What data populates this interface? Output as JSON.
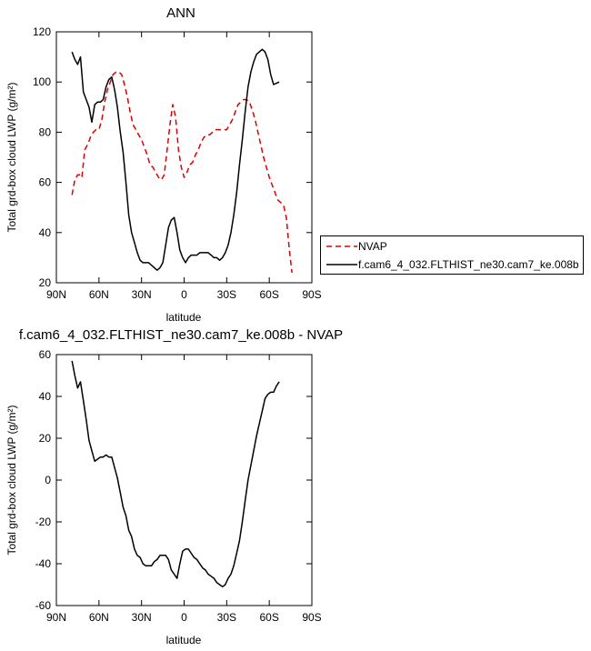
{
  "chart_data": [
    {
      "type": "line",
      "title": "ANN",
      "xlabel": "latitude",
      "ylabel": "Total grd-box cloud LWP (g/m²)",
      "xlim": [
        90,
        -90
      ],
      "ylim": [
        20,
        120
      ],
      "xticks": [
        {
          "value": 90,
          "label": "90N"
        },
        {
          "value": 60,
          "label": "60N"
        },
        {
          "value": 30,
          "label": "30N"
        },
        {
          "value": 0,
          "label": "0"
        },
        {
          "value": -30,
          "label": "30S"
        },
        {
          "value": -60,
          "label": "60S"
        },
        {
          "value": -90,
          "label": "90S"
        }
      ],
      "yticks": [
        20,
        40,
        60,
        80,
        100,
        120
      ],
      "grid": false,
      "legend": "right",
      "series": [
        {
          "name": "NVAP",
          "color": "#dd0000",
          "dash": "dashed",
          "points": [
            [
              79,
              55
            ],
            [
              77,
              61
            ],
            [
              75,
              63
            ],
            [
              73,
              63
            ],
            [
              72,
              62
            ],
            [
              70,
              73
            ],
            [
              68,
              75
            ],
            [
              66,
              78
            ],
            [
              64,
              80
            ],
            [
              62,
              81
            ],
            [
              60,
              81
            ],
            [
              58,
              85
            ],
            [
              56,
              92
            ],
            [
              54,
              97
            ],
            [
              52,
              100
            ],
            [
              50,
              103
            ],
            [
              48,
              104
            ],
            [
              46,
              104
            ],
            [
              44,
              103
            ],
            [
              42,
              99
            ],
            [
              40,
              94
            ],
            [
              38,
              88
            ],
            [
              36,
              83
            ],
            [
              34,
              81
            ],
            [
              32,
              79
            ],
            [
              30,
              77
            ],
            [
              28,
              74
            ],
            [
              26,
              71
            ],
            [
              24,
              67
            ],
            [
              22,
              66
            ],
            [
              20,
              64
            ],
            [
              18,
              62
            ],
            [
              16,
              61
            ],
            [
              14,
              63
            ],
            [
              12,
              73
            ],
            [
              10,
              83
            ],
            [
              8,
              91
            ],
            [
              6,
              86
            ],
            [
              4,
              73
            ],
            [
              2,
              66
            ],
            [
              0,
              62
            ],
            [
              -2,
              64
            ],
            [
              -4,
              67
            ],
            [
              -6,
              68
            ],
            [
              -8,
              71
            ],
            [
              -10,
              73
            ],
            [
              -12,
              76
            ],
            [
              -14,
              78
            ],
            [
              -16,
              79
            ],
            [
              -18,
              79
            ],
            [
              -20,
              80
            ],
            [
              -22,
              81
            ],
            [
              -24,
              81
            ],
            [
              -26,
              81
            ],
            [
              -28,
              81
            ],
            [
              -30,
              81
            ],
            [
              -32,
              83
            ],
            [
              -34,
              85
            ],
            [
              -36,
              88
            ],
            [
              -38,
              91
            ],
            [
              -40,
              92
            ],
            [
              -42,
              93
            ],
            [
              -44,
              93
            ],
            [
              -46,
              92
            ],
            [
              -48,
              89
            ],
            [
              -50,
              85
            ],
            [
              -52,
              80
            ],
            [
              -54,
              75
            ],
            [
              -56,
              70
            ],
            [
              -58,
              66
            ],
            [
              -60,
              62
            ],
            [
              -62,
              59
            ],
            [
              -64,
              56
            ],
            [
              -66,
              53
            ],
            [
              -68,
              52
            ],
            [
              -70,
              51
            ],
            [
              -72,
              46
            ],
            [
              -74,
              34
            ],
            [
              -76,
              24
            ]
          ]
        },
        {
          "name": "f.cam6_4_032.FLTHIST_ne30.cam7_ke.008b",
          "color": "#000000",
          "dash": "solid",
          "points": [
            [
              79,
              112
            ],
            [
              77,
              109
            ],
            [
              75,
              107
            ],
            [
              73,
              110
            ],
            [
              71,
              96
            ],
            [
              69,
              93
            ],
            [
              67,
              90
            ],
            [
              65,
              84
            ],
            [
              63,
              91
            ],
            [
              61,
              92
            ],
            [
              59,
              92
            ],
            [
              57,
              93
            ],
            [
              55,
              98
            ],
            [
              53,
              101
            ],
            [
              51,
              102
            ],
            [
              49,
              97
            ],
            [
              47,
              90
            ],
            [
              45,
              80
            ],
            [
              43,
              72
            ],
            [
              41,
              60
            ],
            [
              39,
              47
            ],
            [
              37,
              40
            ],
            [
              35,
              36
            ],
            [
              33,
              32
            ],
            [
              31,
              29
            ],
            [
              29,
              28
            ],
            [
              27,
              28
            ],
            [
              25,
              28
            ],
            [
              23,
              27
            ],
            [
              21,
              26
            ],
            [
              19,
              25
            ],
            [
              17,
              26
            ],
            [
              15,
              28
            ],
            [
              13,
              35
            ],
            [
              11,
              42
            ],
            [
              9,
              45
            ],
            [
              7,
              46
            ],
            [
              5,
              40
            ],
            [
              3,
              33
            ],
            [
              1,
              30
            ],
            [
              -1,
              28
            ],
            [
              -3,
              30
            ],
            [
              -5,
              31
            ],
            [
              -7,
              31
            ],
            [
              -9,
              31
            ],
            [
              -11,
              32
            ],
            [
              -13,
              32
            ],
            [
              -15,
              32
            ],
            [
              -17,
              32
            ],
            [
              -19,
              31
            ],
            [
              -21,
              30
            ],
            [
              -23,
              30
            ],
            [
              -25,
              29
            ],
            [
              -27,
              30
            ],
            [
              -29,
              32
            ],
            [
              -31,
              35
            ],
            [
              -33,
              40
            ],
            [
              -35,
              47
            ],
            [
              -37,
              56
            ],
            [
              -39,
              67
            ],
            [
              -41,
              77
            ],
            [
              -43,
              88
            ],
            [
              -45,
              98
            ],
            [
              -47,
              104
            ],
            [
              -49,
              108
            ],
            [
              -51,
              111
            ],
            [
              -53,
              112
            ],
            [
              -55,
              113
            ],
            [
              -57,
              112
            ],
            [
              -59,
              109
            ],
            [
              -61,
              103
            ],
            [
              -63,
              99
            ],
            [
              -65,
              99.5
            ],
            [
              -67,
              100
            ]
          ]
        }
      ]
    },
    {
      "type": "line",
      "title": "f.cam6_4_032.FLTHIST_ne30.cam7_ke.008b - NVAP",
      "xlabel": "latitude",
      "ylabel": "Total grd-box cloud LWP (g/m²)",
      "xlim": [
        90,
        -90
      ],
      "ylim": [
        -60,
        60
      ],
      "xticks": [
        {
          "value": 90,
          "label": "90N"
        },
        {
          "value": 60,
          "label": "60N"
        },
        {
          "value": 30,
          "label": "30N"
        },
        {
          "value": 0,
          "label": "0"
        },
        {
          "value": -30,
          "label": "30S"
        },
        {
          "value": -60,
          "label": "60S"
        },
        {
          "value": -90,
          "label": "90S"
        }
      ],
      "yticks": [
        -60,
        -40,
        -20,
        0,
        20,
        40,
        60
      ],
      "grid": false,
      "series": [
        {
          "color": "#000000",
          "dash": "solid",
          "points": [
            [
              79,
              57
            ],
            [
              77,
              50
            ],
            [
              75,
              44
            ],
            [
              73,
              47
            ],
            [
              71,
              38
            ],
            [
              69,
              29
            ],
            [
              67,
              19
            ],
            [
              65,
              14
            ],
            [
              63,
              9
            ],
            [
              61,
              10
            ],
            [
              59,
              11
            ],
            [
              57,
              11
            ],
            [
              55,
              12
            ],
            [
              53,
              11
            ],
            [
              51,
              11
            ],
            [
              49,
              6
            ],
            [
              47,
              1
            ],
            [
              45,
              -6
            ],
            [
              43,
              -13
            ],
            [
              41,
              -17
            ],
            [
              39,
              -24
            ],
            [
              37,
              -27
            ],
            [
              35,
              -33
            ],
            [
              33,
              -36
            ],
            [
              31,
              -37
            ],
            [
              29,
              -40
            ],
            [
              27,
              -41
            ],
            [
              25,
              -41
            ],
            [
              23,
              -41
            ],
            [
              21,
              -39
            ],
            [
              19,
              -38
            ],
            [
              17,
              -36
            ],
            [
              15,
              -36
            ],
            [
              13,
              -36
            ],
            [
              11,
              -38
            ],
            [
              9,
              -43
            ],
            [
              7,
              -45
            ],
            [
              5,
              -47
            ],
            [
              3,
              -40
            ],
            [
              1,
              -34
            ],
            [
              -1,
              -33
            ],
            [
              -3,
              -33
            ],
            [
              -5,
              -35
            ],
            [
              -7,
              -37
            ],
            [
              -9,
              -38
            ],
            [
              -11,
              -40
            ],
            [
              -13,
              -42
            ],
            [
              -15,
              -43
            ],
            [
              -17,
              -45
            ],
            [
              -19,
              -46
            ],
            [
              -21,
              -47
            ],
            [
              -23,
              -49
            ],
            [
              -25,
              -50
            ],
            [
              -27,
              -51
            ],
            [
              -29,
              -50
            ],
            [
              -31,
              -47
            ],
            [
              -33,
              -45
            ],
            [
              -35,
              -41
            ],
            [
              -37,
              -35
            ],
            [
              -39,
              -29
            ],
            [
              -41,
              -20
            ],
            [
              -43,
              -10
            ],
            [
              -45,
              0
            ],
            [
              -47,
              7
            ],
            [
              -49,
              14
            ],
            [
              -51,
              21
            ],
            [
              -53,
              27
            ],
            [
              -55,
              33
            ],
            [
              -57,
              39
            ],
            [
              -59,
              41
            ],
            [
              -61,
              42
            ],
            [
              -63,
              42
            ],
            [
              -65,
              45
            ],
            [
              -67,
              47
            ]
          ]
        }
      ]
    }
  ]
}
